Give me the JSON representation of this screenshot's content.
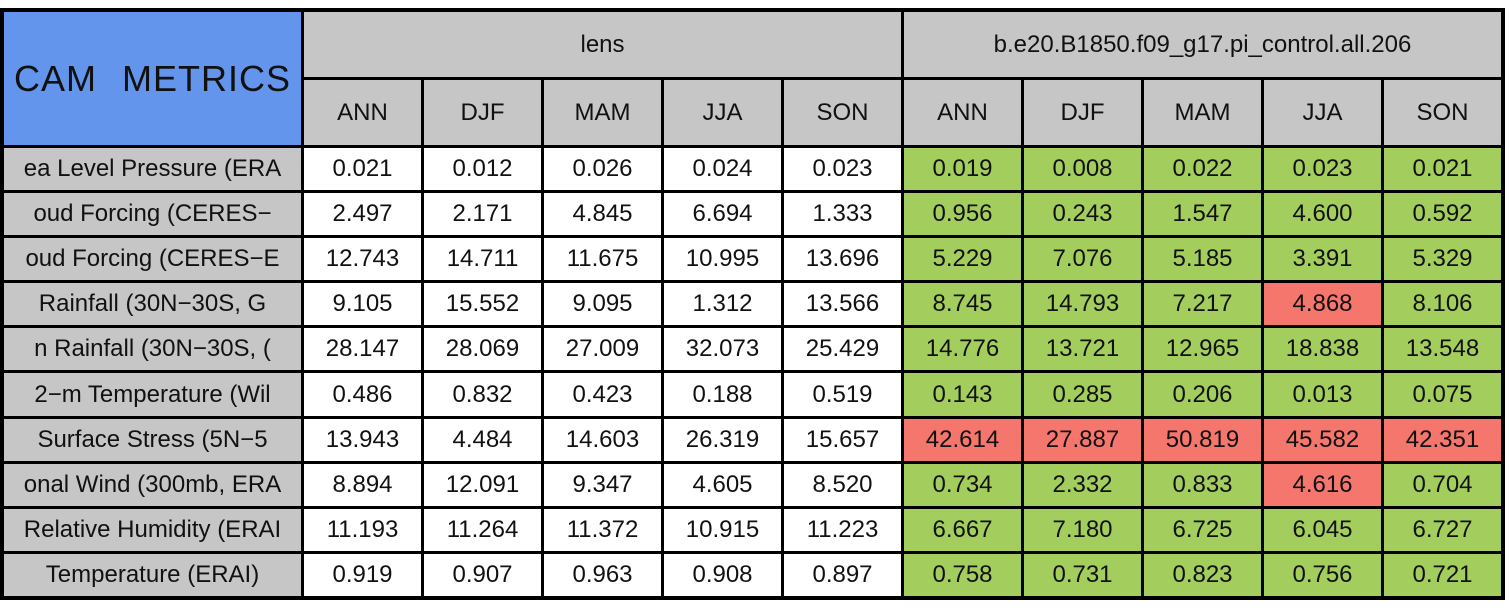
{
  "ui": {
    "title": "CAM METRICS"
  },
  "colors": {
    "title-bg": "#6495ed",
    "header-bg": "#c6c6c6",
    "label-bg": "#c6c6c6",
    "value-bg": "#ffffff",
    "good": "#a3cd5c",
    "bad": "#f5766d",
    "border": "#000000",
    "text": "#111111"
  },
  "chart_data": {
    "type": "table",
    "title": "CAM METRICS",
    "column_groups": [
      "lens",
      "b.e20.B1850.f09_g17.pi_control.all.206"
    ],
    "seasons": [
      "ANN",
      "DJF",
      "MAM",
      "JJA",
      "SON"
    ],
    "cell_color_meaning": {
      "green": "good",
      "red": "bad",
      "white": "reference"
    },
    "rows": [
      {
        "label": "ea Level Pressure (ERA",
        "lens": [
          "0.021",
          "0.012",
          "0.026",
          "0.024",
          "0.023"
        ],
        "control": [
          "0.019",
          "0.008",
          "0.022",
          "0.023",
          "0.021"
        ],
        "control_flags": [
          "green",
          "green",
          "green",
          "green",
          "green"
        ]
      },
      {
        "label": "oud Forcing (CERES−",
        "lens": [
          "2.497",
          "2.171",
          "4.845",
          "6.694",
          "1.333"
        ],
        "control": [
          "0.956",
          "0.243",
          "1.547",
          "4.600",
          "0.592"
        ],
        "control_flags": [
          "green",
          "green",
          "green",
          "green",
          "green"
        ]
      },
      {
        "label": "oud Forcing (CERES−E",
        "lens": [
          "12.743",
          "14.711",
          "11.675",
          "10.995",
          "13.696"
        ],
        "control": [
          "5.229",
          "7.076",
          "5.185",
          "3.391",
          "5.329"
        ],
        "control_flags": [
          "green",
          "green",
          "green",
          "green",
          "green"
        ]
      },
      {
        "label": "Rainfall (30N−30S, G",
        "lens": [
          "9.105",
          "15.552",
          "9.095",
          "1.312",
          "13.566"
        ],
        "control": [
          "8.745",
          "14.793",
          "7.217",
          "4.868",
          "8.106"
        ],
        "control_flags": [
          "green",
          "green",
          "green",
          "red",
          "green"
        ]
      },
      {
        "label": "n Rainfall (30N−30S, (",
        "lens": [
          "28.147",
          "28.069",
          "27.009",
          "32.073",
          "25.429"
        ],
        "control": [
          "14.776",
          "13.721",
          "12.965",
          "18.838",
          "13.548"
        ],
        "control_flags": [
          "green",
          "green",
          "green",
          "green",
          "green"
        ]
      },
      {
        "label": "2−m Temperature (Wil",
        "lens": [
          "0.486",
          "0.832",
          "0.423",
          "0.188",
          "0.519"
        ],
        "control": [
          "0.143",
          "0.285",
          "0.206",
          "0.013",
          "0.075"
        ],
        "control_flags": [
          "green",
          "green",
          "green",
          "green",
          "green"
        ]
      },
      {
        "label": "Surface Stress (5N−5",
        "lens": [
          "13.943",
          "4.484",
          "14.603",
          "26.319",
          "15.657"
        ],
        "control": [
          "42.614",
          "27.887",
          "50.819",
          "45.582",
          "42.351"
        ],
        "control_flags": [
          "red",
          "red",
          "red",
          "red",
          "red"
        ]
      },
      {
        "label": "onal Wind (300mb, ERA",
        "lens": [
          "8.894",
          "12.091",
          "9.347",
          "4.605",
          "8.520"
        ],
        "control": [
          "0.734",
          "2.332",
          "0.833",
          "4.616",
          "0.704"
        ],
        "control_flags": [
          "green",
          "green",
          "green",
          "red",
          "green"
        ]
      },
      {
        "label": "Relative Humidity (ERAI",
        "lens": [
          "11.193",
          "11.264",
          "11.372",
          "10.915",
          "11.223"
        ],
        "control": [
          "6.667",
          "7.180",
          "6.725",
          "6.045",
          "6.727"
        ],
        "control_flags": [
          "green",
          "green",
          "green",
          "green",
          "green"
        ]
      },
      {
        "label": "Temperature (ERAI)",
        "lens": [
          "0.919",
          "0.907",
          "0.963",
          "0.908",
          "0.897"
        ],
        "control": [
          "0.758",
          "0.731",
          "0.823",
          "0.756",
          "0.721"
        ],
        "control_flags": [
          "green",
          "green",
          "green",
          "green",
          "green"
        ]
      }
    ]
  }
}
